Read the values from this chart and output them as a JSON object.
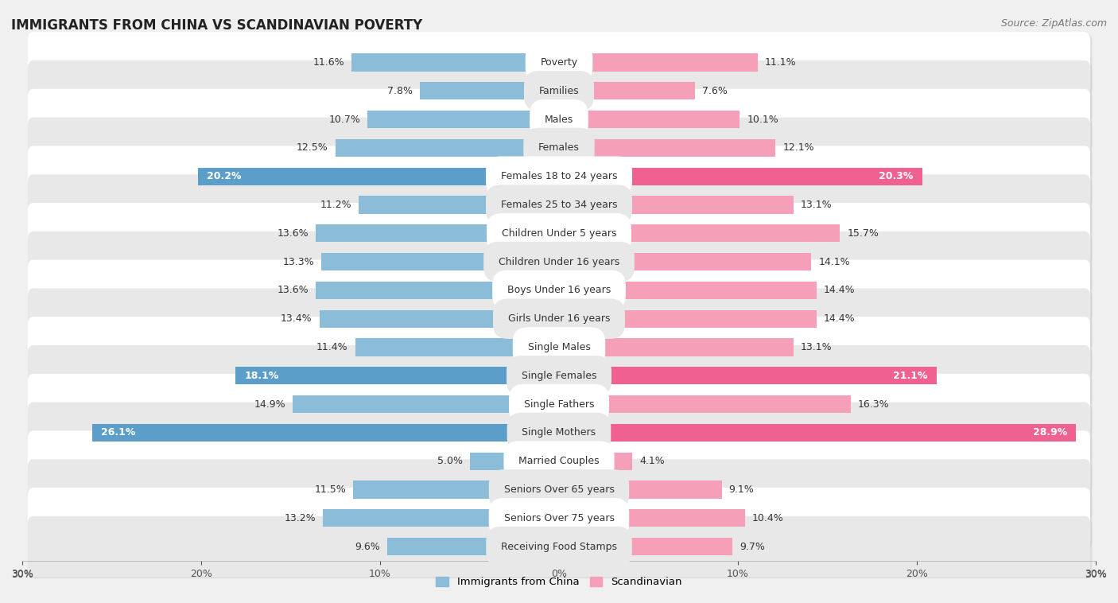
{
  "title": "IMMIGRANTS FROM CHINA VS SCANDINAVIAN POVERTY",
  "source": "Source: ZipAtlas.com",
  "categories": [
    "Poverty",
    "Families",
    "Males",
    "Females",
    "Females 18 to 24 years",
    "Females 25 to 34 years",
    "Children Under 5 years",
    "Children Under 16 years",
    "Boys Under 16 years",
    "Girls Under 16 years",
    "Single Males",
    "Single Females",
    "Single Fathers",
    "Single Mothers",
    "Married Couples",
    "Seniors Over 65 years",
    "Seniors Over 75 years",
    "Receiving Food Stamps"
  ],
  "china_values": [
    11.6,
    7.8,
    10.7,
    12.5,
    20.2,
    11.2,
    13.6,
    13.3,
    13.6,
    13.4,
    11.4,
    18.1,
    14.9,
    26.1,
    5.0,
    11.5,
    13.2,
    9.6
  ],
  "scand_values": [
    11.1,
    7.6,
    10.1,
    12.1,
    20.3,
    13.1,
    15.7,
    14.1,
    14.4,
    14.4,
    13.1,
    21.1,
    16.3,
    28.9,
    4.1,
    9.1,
    10.4,
    9.7
  ],
  "china_color": "#8bbdd9",
  "scand_color": "#f5a0b8",
  "china_highlight_color": "#5b9ec9",
  "scand_highlight_color": "#f06090",
  "highlight_rows": [
    4,
    11,
    13
  ],
  "xlim": 30.0,
  "bar_height": 0.62,
  "background_color": "#f0f0f0",
  "row_color_white": "#ffffff",
  "row_color_gray": "#e8e8e8",
  "legend_china": "Immigrants from China",
  "legend_scand": "Scandinavian",
  "label_fontsize": 9.0,
  "cat_fontsize": 9.0
}
